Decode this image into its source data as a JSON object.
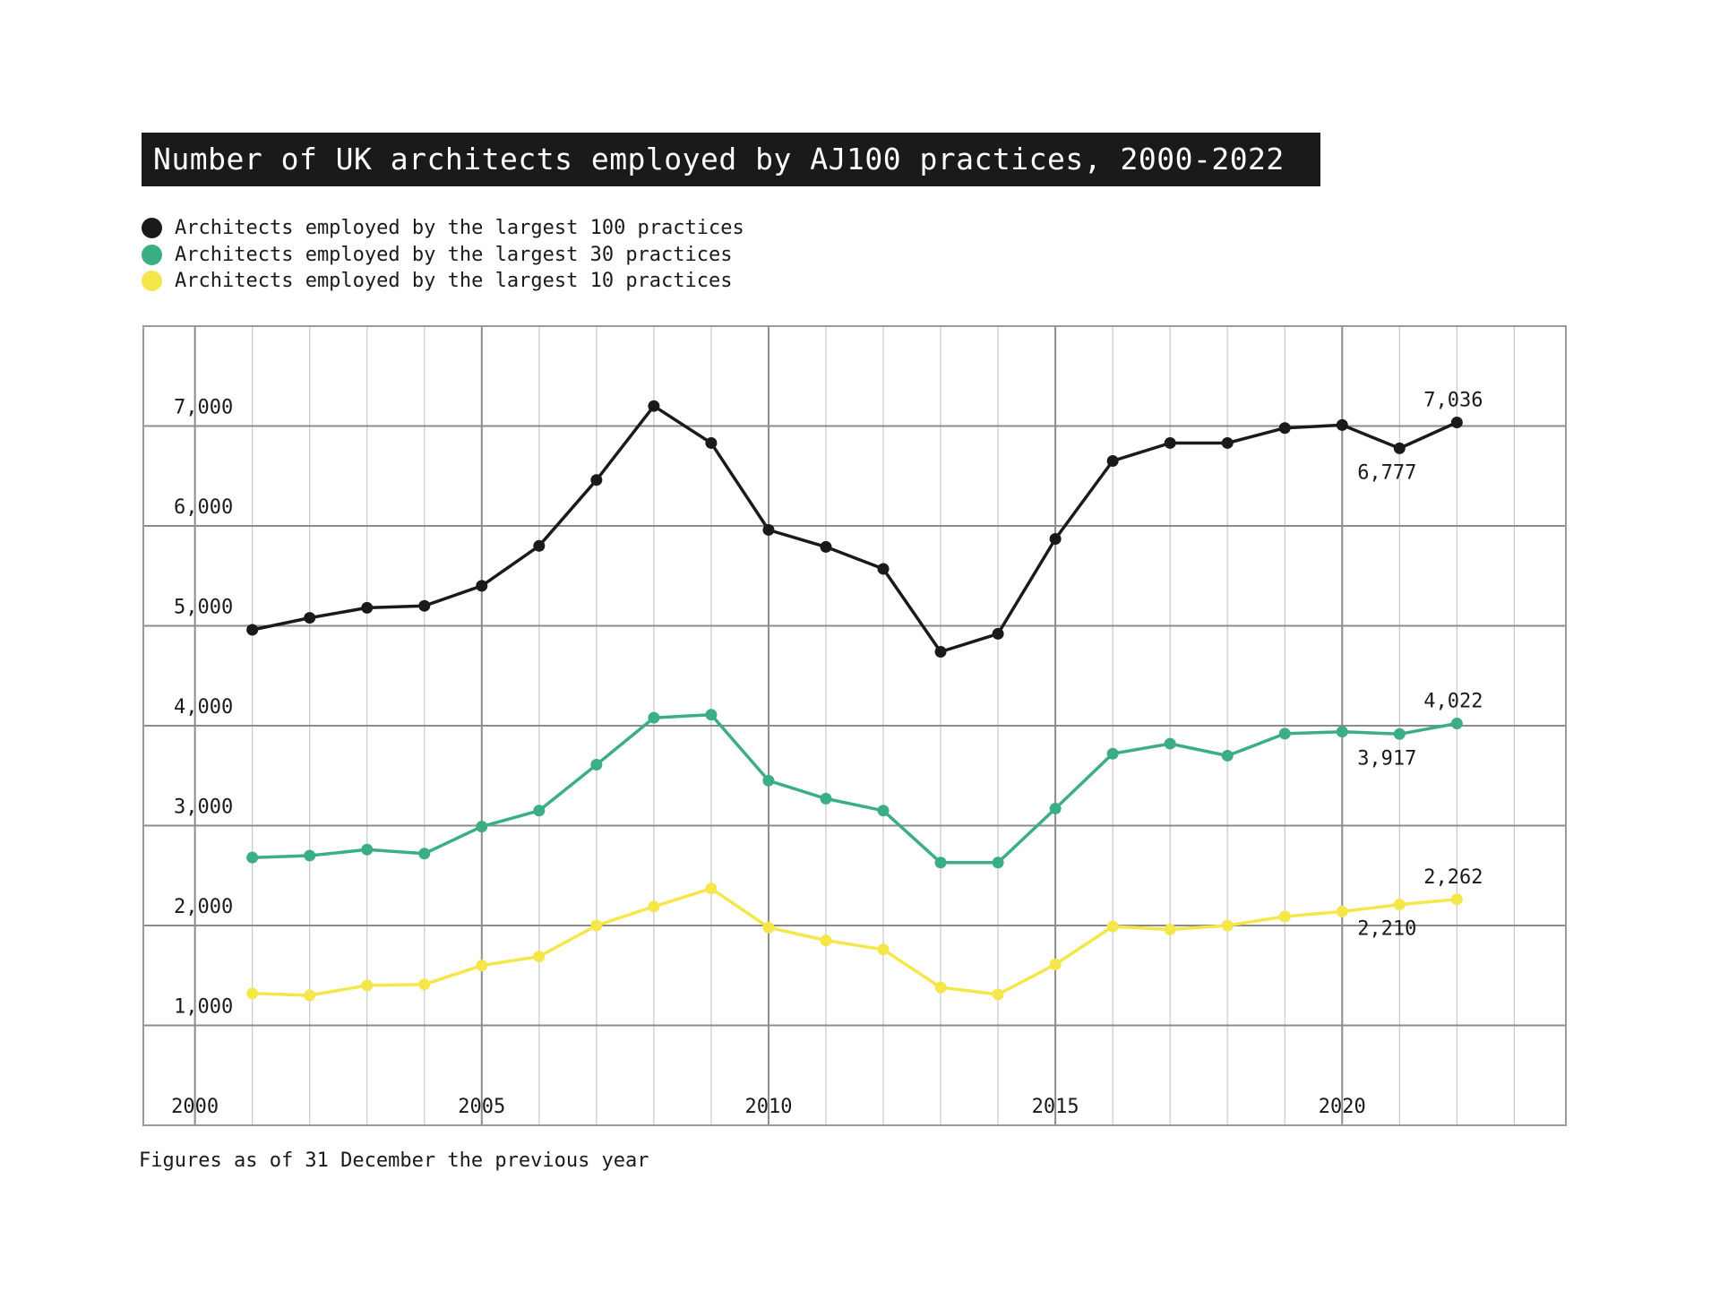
{
  "chart_data": {
    "type": "line",
    "title": "Number of UK architects employed by AJ100 practices, 2000-2022",
    "footnote": "Figures as of 31 December the previous year",
    "x": [
      2001,
      2002,
      2003,
      2004,
      2005,
      2006,
      2007,
      2008,
      2009,
      2010,
      2011,
      2012,
      2013,
      2014,
      2015,
      2016,
      2017,
      2018,
      2019,
      2020,
      2021,
      2022
    ],
    "xlim": [
      1999.1,
      2023.9
    ],
    "ylim": [
      0,
      8000
    ],
    "x_ticks": [
      2000,
      2005,
      2010,
      2015,
      2020
    ],
    "x_tick_labels": [
      "2000",
      "2005",
      "2010",
      "2015",
      "2020"
    ],
    "y_ticks": [
      1000,
      2000,
      3000,
      4000,
      5000,
      6000,
      7000
    ],
    "y_tick_labels": [
      "1,000",
      "2,000",
      "3,000",
      "4,000",
      "5,000",
      "6,000",
      "7,000"
    ],
    "grid": true,
    "legend_position": "top-left",
    "series": [
      {
        "name": "Architects employed by the largest 100 practices",
        "color": "#1a1a1a",
        "values": [
          4960,
          5080,
          5180,
          5200,
          5400,
          5800,
          6460,
          7200,
          6830,
          5960,
          5790,
          5570,
          4740,
          4920,
          5870,
          6650,
          6830,
          6830,
          6980,
          7010,
          6777,
          7036
        ]
      },
      {
        "name": "Architects employed by the largest 30 practices",
        "color": "#3cae83",
        "values": [
          2680,
          2700,
          2760,
          2720,
          2990,
          3150,
          3610,
          4080,
          4110,
          3450,
          3270,
          3150,
          2630,
          2630,
          3170,
          3720,
          3820,
          3700,
          3920,
          3940,
          3917,
          4022
        ]
      },
      {
        "name": "Architects employed by the largest 10 practices",
        "color": "#f5e64a",
        "values": [
          1320,
          1300,
          1400,
          1410,
          1600,
          1690,
          2000,
          2190,
          2370,
          1980,
          1850,
          1760,
          1380,
          1310,
          1610,
          1990,
          1960,
          2000,
          2090,
          2140,
          2210,
          2262
        ]
      }
    ],
    "annotations": [
      {
        "series": 0,
        "x": 2022,
        "text": "7,036",
        "placement": "above"
      },
      {
        "series": 0,
        "x": 2021,
        "text": "6,777",
        "placement": "below"
      },
      {
        "series": 1,
        "x": 2022,
        "text": "4,022",
        "placement": "above"
      },
      {
        "series": 1,
        "x": 2021,
        "text": "3,917",
        "placement": "below"
      },
      {
        "series": 2,
        "x": 2022,
        "text": "2,262",
        "placement": "above"
      },
      {
        "series": 2,
        "x": 2021,
        "text": "2,210",
        "placement": "below"
      }
    ]
  }
}
